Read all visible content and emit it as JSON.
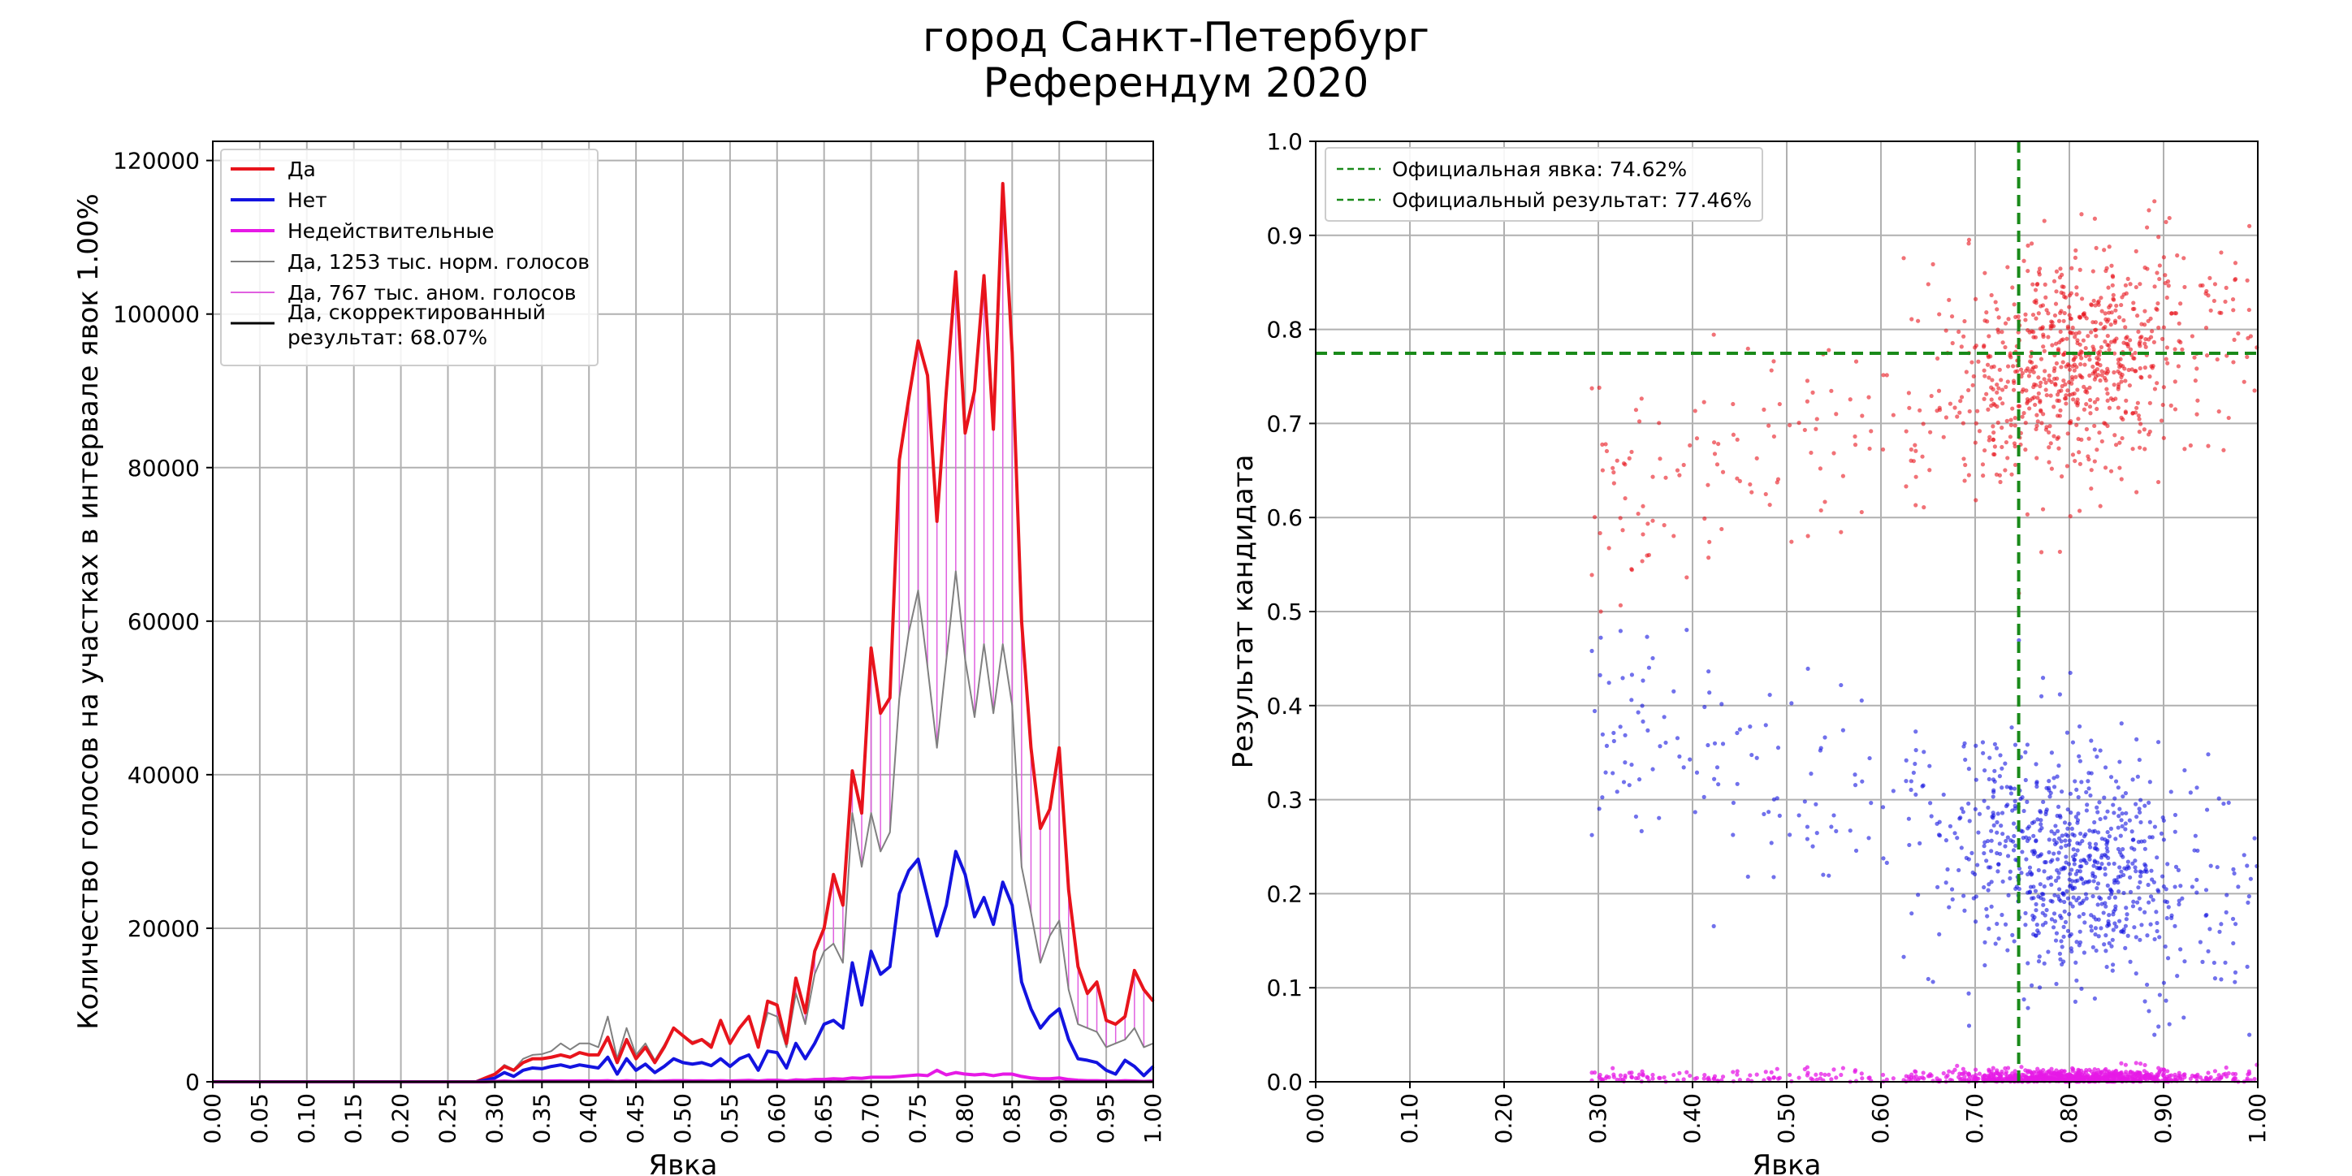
{
  "title": {
    "line1": "город Санкт-Петербург",
    "line2": "Референдум 2020"
  },
  "colors": {
    "da": "#e8141c",
    "net": "#1313e0",
    "invalid": "#e619e6",
    "norm": "#808080",
    "anom": "#e060e0",
    "corrected": "#000000",
    "official": "#1a8a1a",
    "grid": "#b0b0b0"
  },
  "chart_data": [
    {
      "type": "line",
      "xlabel": "Явка",
      "ylabel": "Количество голосов на участках в интервале явок 1.00%",
      "xlim": [
        0,
        1
      ],
      "ylim": [
        0,
        122500
      ],
      "xticks": [
        "0.00",
        "0.05",
        "0.10",
        "0.15",
        "0.20",
        "0.25",
        "0.30",
        "0.35",
        "0.40",
        "0.45",
        "0.50",
        "0.55",
        "0.60",
        "0.65",
        "0.70",
        "0.75",
        "0.80",
        "0.85",
        "0.90",
        "0.95",
        "1.00"
      ],
      "yticks": [
        "0",
        "20000",
        "40000",
        "60000",
        "80000",
        "100000",
        "120000"
      ],
      "ytick_values": [
        0,
        20000,
        40000,
        60000,
        80000,
        100000,
        120000
      ],
      "grid": true,
      "legend_placement": "top-left",
      "legend": [
        {
          "label": "Да",
          "color": "#e8141c",
          "width": 4
        },
        {
          "label": "Нет",
          "color": "#1313e0",
          "width": 4
        },
        {
          "label": "Недействительные",
          "color": "#e619e6",
          "width": 4
        },
        {
          "label": "Да, 1253 тыс. норм. голосов",
          "color": "#808080",
          "width": 2
        },
        {
          "label": "Да, 767 тыс. аном. голосов",
          "color": "#e060e0",
          "width": 2
        },
        {
          "label": "Да, скорректированный",
          "label2": "результат: 68.07%",
          "color": "#000000",
          "width": 3
        }
      ],
      "x": [
        0.28,
        0.29,
        0.3,
        0.31,
        0.32,
        0.33,
        0.34,
        0.35,
        0.36,
        0.37,
        0.38,
        0.39,
        0.4,
        0.41,
        0.42,
        0.43,
        0.44,
        0.45,
        0.46,
        0.47,
        0.48,
        0.49,
        0.5,
        0.51,
        0.52,
        0.53,
        0.54,
        0.55,
        0.56,
        0.57,
        0.58,
        0.59,
        0.6,
        0.61,
        0.62,
        0.63,
        0.64,
        0.65,
        0.66,
        0.67,
        0.68,
        0.69,
        0.7,
        0.71,
        0.72,
        0.73,
        0.74,
        0.75,
        0.76,
        0.77,
        0.78,
        0.79,
        0.8,
        0.81,
        0.82,
        0.83,
        0.84,
        0.85,
        0.86,
        0.87,
        0.88,
        0.89,
        0.9,
        0.91,
        0.92,
        0.93,
        0.94,
        0.95,
        0.96,
        0.97,
        0.98,
        0.99,
        1.0
      ],
      "series": [
        {
          "name": "Да",
          "color": "#e8141c",
          "width": 4,
          "values": [
            0,
            500,
            1000,
            2000,
            1500,
            2500,
            3000,
            3000,
            3200,
            3500,
            3200,
            3800,
            3500,
            3500,
            5800,
            2500,
            5500,
            3000,
            4500,
            2500,
            4500,
            7000,
            6000,
            5000,
            5500,
            4500,
            8000,
            5000,
            7000,
            8500,
            4500,
            10500,
            10000,
            5000,
            13500,
            9000,
            17000,
            20000,
            27000,
            23000,
            40500,
            35000,
            56500,
            48000,
            50000,
            81000,
            89000,
            96500,
            92000,
            73000,
            90000,
            105500,
            84500,
            90000,
            105000,
            85000,
            117000,
            95000,
            60000,
            43500,
            33000,
            35500,
            43500,
            25000,
            15000,
            11500,
            13000,
            8000,
            7500,
            8500,
            14500,
            12000,
            10500
          ]
        },
        {
          "name": "Нет",
          "color": "#1313e0",
          "width": 4,
          "values": [
            0,
            200,
            500,
            1200,
            700,
            1500,
            1800,
            1700,
            2000,
            2200,
            1900,
            2200,
            2000,
            1800,
            3200,
            1000,
            3000,
            1500,
            2300,
            1200,
            2000,
            3000,
            2500,
            2300,
            2500,
            2100,
            3000,
            2000,
            3000,
            3500,
            1500,
            4000,
            3800,
            1800,
            5000,
            3000,
            5000,
            7500,
            8000,
            7000,
            15500,
            10000,
            17000,
            14000,
            15000,
            24500,
            27500,
            29000,
            24000,
            19000,
            23000,
            30000,
            27000,
            21500,
            24000,
            20500,
            26000,
            23000,
            13000,
            9500,
            7000,
            8500,
            9500,
            5500,
            3000,
            2800,
            2500,
            1500,
            1000,
            2800,
            2000,
            800,
            2000
          ]
        },
        {
          "name": "Недействительные",
          "color": "#e619e6",
          "width": 4,
          "values": [
            0,
            0,
            50,
            100,
            50,
            100,
            100,
            100,
            100,
            120,
            100,
            120,
            100,
            100,
            150,
            60,
            150,
            80,
            120,
            60,
            100,
            150,
            150,
            120,
            130,
            100,
            150,
            100,
            150,
            180,
            100,
            200,
            200,
            100,
            250,
            200,
            300,
            300,
            400,
            350,
            500,
            450,
            600,
            600,
            600,
            700,
            800,
            900,
            800,
            1500,
            900,
            1200,
            1000,
            900,
            1000,
            800,
            1000,
            1000,
            700,
            500,
            400,
            400,
            500,
            300,
            200,
            150,
            150,
            100,
            80,
            150,
            100,
            50,
            100
          ]
        },
        {
          "name": "Да, 1253 тыс. норм. голосов",
          "color": "#808080",
          "width": 2,
          "values": [
            0,
            500,
            1000,
            2200,
            1600,
            3000,
            3500,
            3600,
            4000,
            5000,
            4200,
            5000,
            5000,
            4500,
            8500,
            3000,
            7000,
            3500,
            5000,
            2800,
            4800,
            7000,
            6000,
            5200,
            5600,
            4800,
            8000,
            5000,
            7000,
            8500,
            4500,
            9000,
            8500,
            4500,
            11500,
            7500,
            14000,
            17000,
            18000,
            15500,
            35000,
            28000,
            35000,
            30000,
            32500,
            50000,
            58500,
            64000,
            54000,
            43500,
            55000,
            66500,
            55000,
            47500,
            57000,
            48000,
            57000,
            49000,
            28000,
            22000,
            15500,
            19000,
            21000,
            12000,
            7500,
            7000,
            6500,
            4500,
            5000,
            5500,
            7000,
            4500,
            5000
          ]
        },
        {
          "name": "Да, скорректированный результат: 68.07%",
          "color": "#000000",
          "width": 3,
          "values": [
            0,
            0,
            0,
            0,
            0,
            0,
            0,
            0,
            0,
            0,
            0,
            0,
            0,
            0,
            0,
            0,
            0,
            0,
            0,
            0,
            0,
            0,
            0,
            0,
            0,
            0,
            0,
            0,
            0,
            0,
            0,
            0,
            0,
            0,
            0,
            0,
            0,
            0,
            0,
            0,
            0,
            0,
            0,
            0,
            0,
            0,
            0,
            0,
            0,
            0,
            0,
            0,
            0,
            0,
            0,
            0,
            0,
            0,
            0,
            0,
            0,
            0,
            0,
            0,
            0,
            0,
            0,
            0,
            0,
            0,
            0,
            0,
            0
          ]
        }
      ],
      "anomaly_hatch": {
        "name": "Да, 767 тыс. аном. голосов",
        "color": "#e060e0",
        "between": [
          "Да, 1253 тыс. норм. голосов",
          "Да"
        ]
      }
    },
    {
      "type": "scatter",
      "xlabel": "Явка",
      "ylabel": "Результат кандидата",
      "xlim": [
        0,
        1
      ],
      "ylim": [
        0,
        1
      ],
      "xticks": [
        "0.00",
        "0.10",
        "0.20",
        "0.30",
        "0.40",
        "0.50",
        "0.60",
        "0.70",
        "0.80",
        "0.90",
        "1.00"
      ],
      "yticks": [
        "0.0",
        "0.1",
        "0.2",
        "0.3",
        "0.4",
        "0.5",
        "0.6",
        "0.7",
        "0.8",
        "0.9",
        "1.0"
      ],
      "grid": true,
      "legend_placement": "top-left",
      "legend": [
        {
          "label": "Официальная явка: 74.62%",
          "color": "#1a8a1a"
        },
        {
          "label": "Официальный результат: 77.46%",
          "color": "#1a8a1a"
        }
      ],
      "reference_lines": {
        "official_turnout": 0.7462,
        "official_result": 0.7746
      },
      "series": [
        {
          "name": "Да",
          "color": "#e8141c",
          "point_count": 2400,
          "turnout_range": [
            0.28,
            1.0
          ],
          "center": [
            0.78,
            0.79
          ]
        },
        {
          "name": "Нет",
          "color": "#1313e0",
          "point_count": 2400,
          "turnout_range": [
            0.28,
            1.0
          ],
          "center": [
            0.78,
            0.19
          ]
        },
        {
          "name": "Недействительные",
          "color": "#e619e6",
          "point_count": 2400,
          "turnout_range": [
            0.28,
            1.0
          ],
          "center": [
            0.78,
            0.01
          ]
        }
      ]
    }
  ]
}
